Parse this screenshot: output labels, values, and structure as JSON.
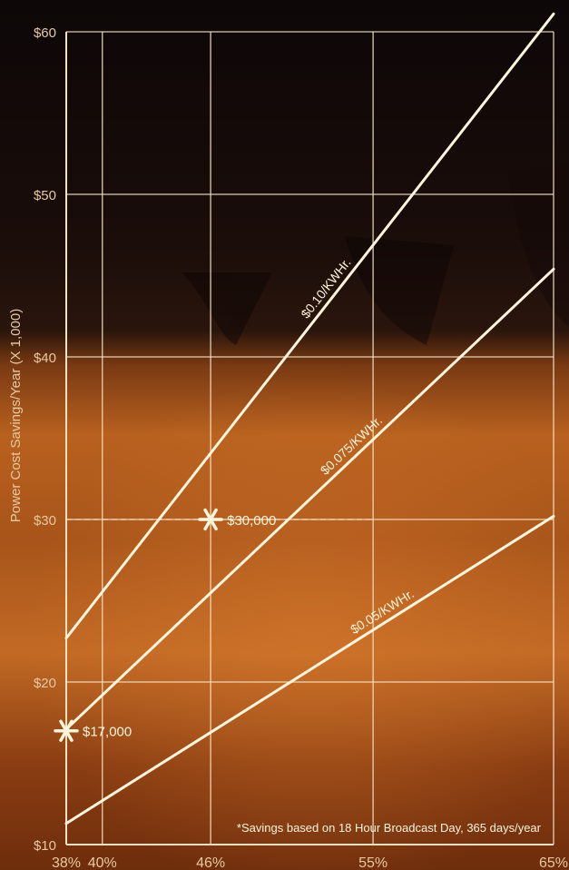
{
  "chart_data": {
    "type": "line",
    "ylabel": "Power Cost Savings/Year (X 1,000)",
    "xlabel": "",
    "x_ticks": [
      "38%",
      "40%",
      "46%",
      "55%",
      "65%"
    ],
    "x_tick_values": [
      38,
      40,
      46,
      55,
      65
    ],
    "y_ticks": [
      "$10",
      "$20",
      "$30",
      "$40",
      "$50",
      "$60"
    ],
    "y_tick_values": [
      10,
      20,
      30,
      40,
      50,
      60
    ],
    "xlim": [
      38,
      65
    ],
    "ylim": [
      10,
      60
    ],
    "grid": true,
    "series": [
      {
        "name": "$0.10/KWHr.",
        "x": [
          38,
          65
        ],
        "y": [
          22.7,
          61.1
        ]
      },
      {
        "name": "$0.075/KWHr.",
        "x": [
          38,
          65
        ],
        "y": [
          17.1,
          45.4
        ]
      },
      {
        "name": "$0.05/KWHr.",
        "x": [
          38,
          65
        ],
        "y": [
          11.3,
          30.2
        ]
      }
    ],
    "annotations": [
      {
        "text": "$17,000",
        "x": 38,
        "y": 17
      },
      {
        "text": "$30,000",
        "x": 46,
        "y": 30
      }
    ],
    "footnote": "*Savings based on 18 Hour Broadcast Day, 365 days/year"
  },
  "colors": {
    "line": "#fff4dc",
    "grid": "#f3e2c4",
    "tick_text": "#e7c9a1",
    "bg_dark": "#120a0a",
    "bg_mid": "#5a2a10",
    "bg_orange": "#b8611f",
    "bg_lower": "#8a3d12"
  }
}
